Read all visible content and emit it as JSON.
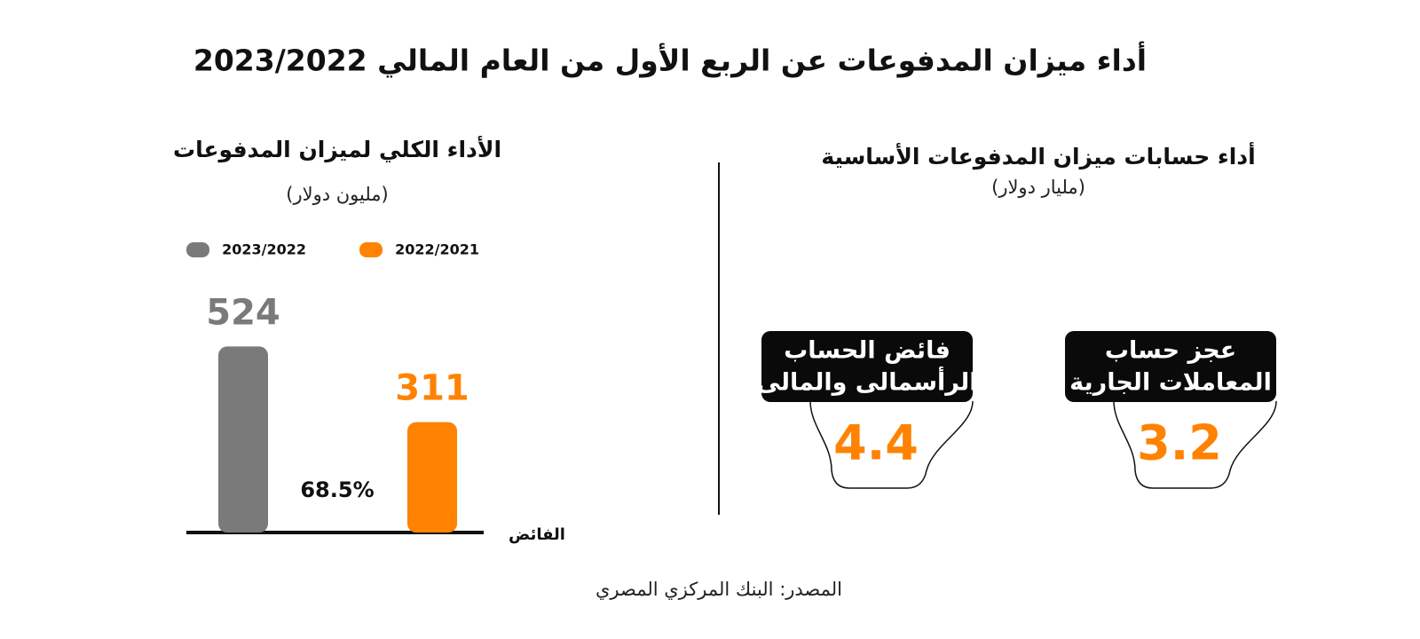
{
  "title": "أداء ميزان المدفوعات عن الربع الأول من العام المالي 2023/2022",
  "chart_data": {
    "type": "bar",
    "title": "الأداء الكلي لميزان المدفوعات",
    "subtitle": "(مليون دولار)",
    "categories": [
      "الفائض"
    ],
    "series": [
      {
        "name": "2023/2022",
        "color": "#7a7a7a",
        "values": [
          524
        ]
      },
      {
        "name": "2022/2021",
        "color": "#ff8200",
        "values": [
          311
        ]
      }
    ],
    "annotation": "68.5%"
  },
  "cards": {
    "title": "أداء حسابات ميزان المدفوعات الأساسية",
    "subtitle": "(مليار دولار)",
    "items": [
      {
        "label": [
          "عجز حساب",
          "المعاملات الجارية"
        ],
        "value": 3.2
      },
      {
        "label": [
          "فائض الحساب",
          "الرأسمالى والمالى"
        ],
        "value": 4.4
      }
    ]
  },
  "source": "المصدر: البنك المركزي المصري"
}
